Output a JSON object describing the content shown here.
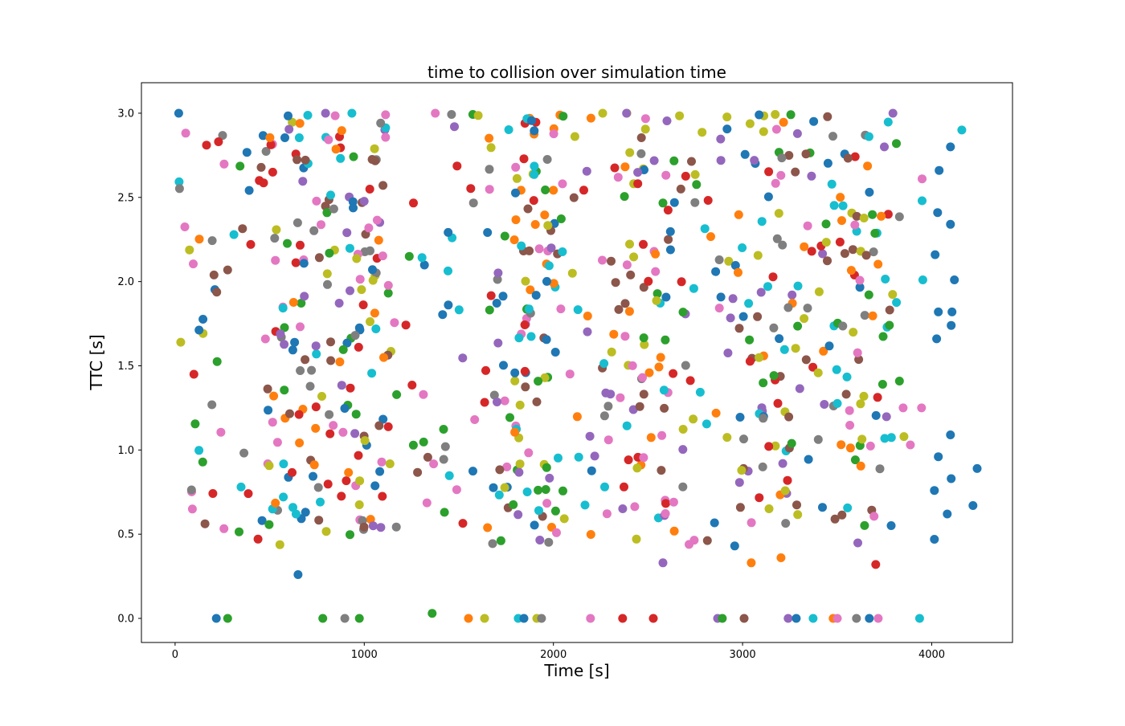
{
  "figure": {
    "background": "#ffffff",
    "spine_color": "#000000"
  },
  "chart_data": {
    "type": "scatter",
    "title": "time to collision over simulation time",
    "xlabel": "Time [s]",
    "ylabel": "TTC [s]",
    "xlim": [
      -178,
      4427
    ],
    "ylim": [
      -0.143,
      3.181
    ],
    "xticks": {
      "values": [
        0,
        1000,
        2000,
        3000,
        4000
      ],
      "labels": [
        "0",
        "1000",
        "2000",
        "3000",
        "4000"
      ]
    },
    "yticks": {
      "values": [
        0.0,
        0.5,
        1.0,
        1.5,
        2.0,
        2.5,
        3.0
      ],
      "labels": [
        "0.0",
        "0.5",
        "1.0",
        "1.5",
        "2.0",
        "2.5",
        "3.0"
      ]
    },
    "grid": false,
    "legend": "none",
    "palette": [
      "#1f77b4",
      "#ff7f0e",
      "#2ca02c",
      "#d62728",
      "#9467bd",
      "#8c564b",
      "#e377c2",
      "#7f7f7f",
      "#bcbd22",
      "#17becf"
    ],
    "palette_names": [
      "blue",
      "orange",
      "green",
      "red",
      "purple",
      "brown",
      "pink",
      "gray",
      "olive",
      "cyan"
    ],
    "marker": {
      "shape": "circle",
      "radius_px": 5.5
    },
    "points": {
      "note": "points given as [x_time_s, y_ttc_s, palette_index]; main cloud of ~780 unlabeled random points described by main_cloud_spec",
      "zero_row": [
        [
          218,
          0,
          0
        ],
        [
          278,
          0,
          2
        ],
        [
          781,
          0,
          2
        ],
        [
          897,
          0,
          7
        ],
        [
          974,
          0,
          2
        ],
        [
          1359,
          0.03,
          2
        ],
        [
          1551,
          0,
          1
        ],
        [
          1636,
          0,
          8
        ],
        [
          1814,
          0,
          9
        ],
        [
          1844,
          0,
          0
        ],
        [
          1912,
          0,
          8
        ],
        [
          1937,
          0,
          7
        ],
        [
          2196,
          0,
          6
        ],
        [
          2366,
          0,
          3
        ],
        [
          2528,
          0,
          3
        ],
        [
          2868,
          0,
          4
        ],
        [
          2893,
          0,
          2
        ],
        [
          3008,
          0,
          5
        ],
        [
          3241,
          0,
          4
        ],
        [
          3284,
          0,
          0
        ],
        [
          3373,
          0,
          9
        ],
        [
          3479,
          0,
          1
        ],
        [
          3501,
          0,
          6
        ],
        [
          3602,
          0,
          7
        ],
        [
          3670,
          0,
          0
        ],
        [
          3717,
          0,
          6
        ],
        [
          3936,
          0,
          9
        ]
      ],
      "low_outliers": [
        [
          650,
          0.26,
          0
        ],
        [
          2579,
          0.33,
          4
        ],
        [
          3046,
          0.33,
          1
        ],
        [
          3203,
          0.36,
          1
        ],
        [
          3704,
          0.32,
          3
        ]
      ],
      "right_edge_trail": [
        [
          4159,
          2.9,
          9
        ],
        [
          4099,
          2.8,
          0
        ],
        [
          4039,
          2.66,
          0
        ],
        [
          3949,
          2.61,
          6
        ],
        [
          3949,
          2.48,
          9
        ],
        [
          4031,
          2.41,
          0
        ],
        [
          4099,
          2.34,
          0
        ],
        [
          4018,
          2.16,
          0
        ],
        [
          3953,
          2.01,
          9
        ],
        [
          4120,
          2.01,
          0
        ],
        [
          4035,
          1.82,
          0
        ],
        [
          4107,
          1.82,
          0
        ],
        [
          4103,
          1.74,
          0
        ],
        [
          4026,
          1.66,
          0
        ],
        [
          3849,
          1.25,
          6
        ],
        [
          3946,
          1.25,
          6
        ],
        [
          3853,
          1.08,
          8
        ],
        [
          3887,
          1.03,
          6
        ],
        [
          4099,
          1.09,
          0
        ],
        [
          4035,
          0.96,
          0
        ],
        [
          4240,
          0.89,
          0
        ],
        [
          4103,
          0.83,
          0
        ],
        [
          4014,
          0.76,
          0
        ],
        [
          4218,
          0.67,
          0
        ],
        [
          4082,
          0.62,
          0
        ],
        [
          4014,
          0.47,
          0
        ]
      ],
      "main_cloud_spec": {
        "seed": 42,
        "uniform_n": 420,
        "x_range": [
          15,
          3830
        ],
        "y_range": [
          0.43,
          3.0
        ],
        "n_at_ymax": 8,
        "clusters": [
          {
            "cx": 620,
            "sd": 120,
            "n": 60
          },
          {
            "cx": 1000,
            "sd": 90,
            "n": 50
          },
          {
            "cx": 1900,
            "sd": 110,
            "n": 72
          },
          {
            "cx": 2520,
            "sd": 100,
            "n": 56
          },
          {
            "cx": 3120,
            "sd": 100,
            "n": 56
          },
          {
            "cx": 3620,
            "sd": 110,
            "n": 58
          }
        ]
      }
    }
  }
}
